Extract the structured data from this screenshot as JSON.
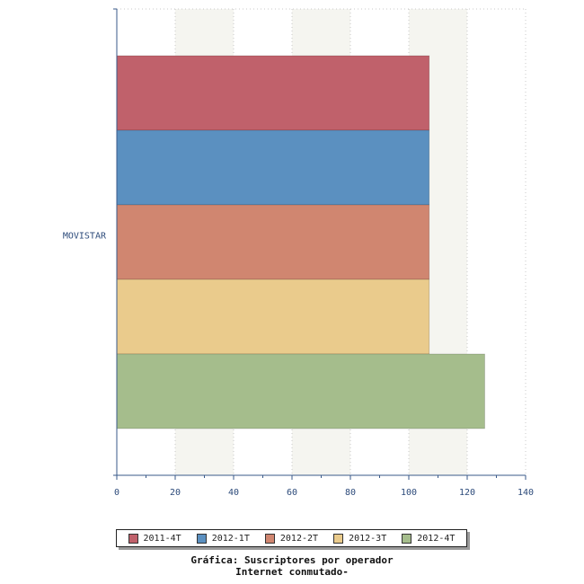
{
  "chart_data": {
    "type": "bar",
    "orientation": "horizontal",
    "categories": [
      "MOVISTAR"
    ],
    "series": [
      {
        "name": "2011-4T",
        "values": [
          107
        ],
        "color": "#c0616b"
      },
      {
        "name": "2012-1T",
        "values": [
          107
        ],
        "color": "#5b90c0"
      },
      {
        "name": "2012-2T",
        "values": [
          107
        ],
        "color": "#d08670"
      },
      {
        "name": "2012-3T",
        "values": [
          107
        ],
        "color": "#eacb8c"
      },
      {
        "name": "2012-4T",
        "values": [
          126
        ],
        "color": "#a5bd8c"
      }
    ],
    "xlim": [
      0,
      140
    ],
    "xticks": [
      0,
      20,
      40,
      60,
      80,
      100,
      120,
      140
    ],
    "xlabel": "",
    "ylabel": "",
    "legend_position": "bottom",
    "grid": true
  },
  "caption": {
    "line1": "Gráfica: Suscriptores por operador",
    "line2": "Internet conmutado-"
  }
}
